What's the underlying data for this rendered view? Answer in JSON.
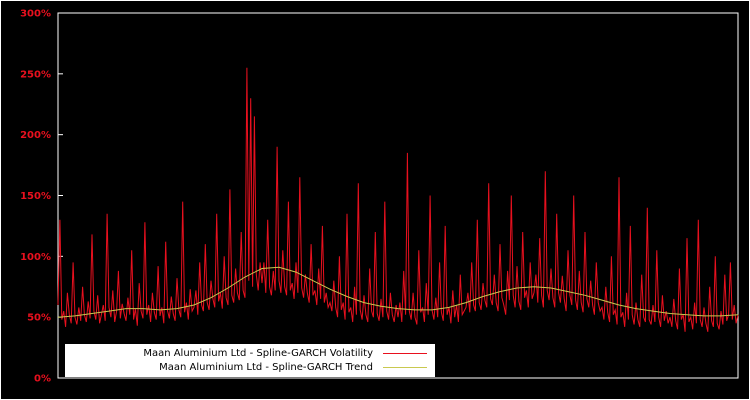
{
  "colors": {
    "background": "#000000",
    "frame": "#ffffff",
    "axis_labels": "#e8101e",
    "volatility_line": "#e8101e",
    "trend_line": "#c9c94f",
    "legend_background": "#ffffff",
    "legend_text": "#000000"
  },
  "chart_data": {
    "type": "line",
    "title": "",
    "xlabel": "",
    "ylabel": "",
    "ylim": [
      0,
      300
    ],
    "grid": false,
    "legend_position": "bottom-left",
    "yticks": [
      {
        "value": 0,
        "label": "0%"
      },
      {
        "value": 50,
        "label": "50%"
      },
      {
        "value": 100,
        "label": "100%"
      },
      {
        "value": 150,
        "label": "150%"
      },
      {
        "value": 200,
        "label": "200%"
      },
      {
        "value": 250,
        "label": "250%"
      },
      {
        "value": 300,
        "label": "300%"
      }
    ],
    "series": [
      {
        "name": "Maan Aluminium Ltd - Spline-GARCH Volatility",
        "color": "#e8101e",
        "values": [
          60,
          130,
          48,
          55,
          42,
          70,
          52,
          45,
          95,
          50,
          44,
          58,
          47,
          75,
          52,
          46,
          63,
          49,
          118,
          55,
          48,
          68,
          45,
          52,
          60,
          47,
          135,
          58,
          50,
          72,
          46,
          55,
          88,
          49,
          61,
          53,
          47,
          66,
          52,
          105,
          48,
          57,
          43,
          78,
          55,
          49,
          128,
          52,
          60,
          46,
          70,
          54,
          48,
          92,
          51,
          58,
          45,
          112,
          55,
          49,
          67,
          53,
          47,
          82,
          56,
          50,
          145,
          54,
          62,
          48,
          73,
          55,
          58,
          72,
          52,
          95,
          60,
          55,
          110,
          62,
          56,
          80,
          65,
          58,
          135,
          63,
          70,
          57,
          100,
          66,
          60,
          155,
          68,
          62,
          90,
          70,
          64,
          120,
          72,
          66,
          255,
          80,
          230,
          75,
          215,
          85,
          72,
          95,
          78,
          95,
          70,
          130,
          75,
          68,
          88,
          72,
          190,
          80,
          70,
          105,
          75,
          68,
          145,
          72,
          78,
          65,
          95,
          70,
          165,
          74,
          66,
          85,
          70,
          62,
          110,
          68,
          72,
          60,
          90,
          65,
          125,
          62,
          70,
          58,
          62,
          55,
          80,
          58,
          50,
          100,
          56,
          62,
          48,
          135,
          54,
          58,
          46,
          75,
          52,
          160,
          56,
          48,
          68,
          52,
          46,
          90,
          55,
          50,
          120,
          53,
          47,
          65,
          50,
          145,
          55,
          48,
          70,
          52,
          46,
          60,
          50,
          62,
          46,
          88,
          52,
          185,
          55,
          48,
          70,
          50,
          44,
          105,
          54,
          58,
          46,
          78,
          52,
          150,
          56,
          48,
          66,
          50,
          95,
          54,
          47,
          125,
          52,
          58,
          45,
          72,
          50,
          60,
          46,
          85,
          52,
          55,
          58,
          70,
          54,
          95,
          60,
          55,
          130,
          62,
          56,
          78,
          64,
          58,
          160,
          65,
          60,
          85,
          62,
          55,
          110,
          66,
          60,
          52,
          88,
          64,
          150,
          68,
          58,
          92,
          63,
          56,
          120,
          66,
          72,
          58,
          95,
          65,
          70,
          85,
          62,
          115,
          68,
          58,
          170,
          72,
          64,
          90,
          66,
          58,
          135,
          70,
          62,
          84,
          65,
          55,
          105,
          68,
          60,
          150,
          64,
          56,
          88,
          62,
          54,
          120,
          65,
          58,
          80,
          60,
          52,
          95,
          62,
          55,
          58,
          48,
          75,
          54,
          46,
          100,
          52,
          56,
          44,
          165,
          50,
          54,
          42,
          70,
          48,
          125,
          52,
          44,
          62,
          48,
          42,
          85,
          50,
          46,
          140,
          48,
          44,
          60,
          46,
          105,
          50,
          42,
          68,
          47,
          55,
          45,
          50,
          42,
          65,
          47,
          40,
          90,
          48,
          52,
          38,
          115,
          46,
          50,
          40,
          62,
          45,
          130,
          48,
          42,
          58,
          45,
          38,
          75,
          47,
          42,
          100,
          45,
          40,
          55,
          44,
          85,
          47,
          52,
          95,
          48,
          60,
          45,
          52
        ]
      },
      {
        "name": "Maan Aluminium Ltd - Spline-GARCH Trend",
        "color": "#c9c94f",
        "values": [
          50,
          51,
          53,
          55,
          57,
          57,
          56,
          57,
          60,
          66,
          74,
          83,
          90,
          91,
          87,
          80,
          73,
          67,
          62,
          59,
          57,
          56,
          56,
          58,
          62,
          67,
          71,
          74,
          75,
          74,
          71,
          68,
          64,
          60,
          57,
          55,
          53,
          52,
          51,
          51,
          52
        ]
      }
    ]
  },
  "legend": {
    "volatility_label": "Maan Aluminium Ltd - Spline-GARCH Volatility",
    "trend_label": "Maan Aluminium Ltd - Spline-GARCH Trend"
  }
}
